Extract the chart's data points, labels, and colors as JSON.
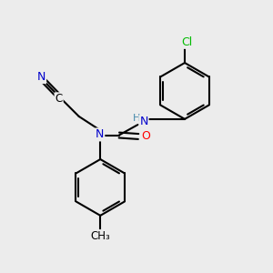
{
  "background_color": "#ececec",
  "atom_colors": {
    "C": "#000000",
    "N": "#0000cc",
    "O": "#ff0000",
    "Cl": "#00bb00",
    "H": "#4488aa"
  },
  "figsize": [
    3.0,
    3.0
  ],
  "dpi": 100
}
